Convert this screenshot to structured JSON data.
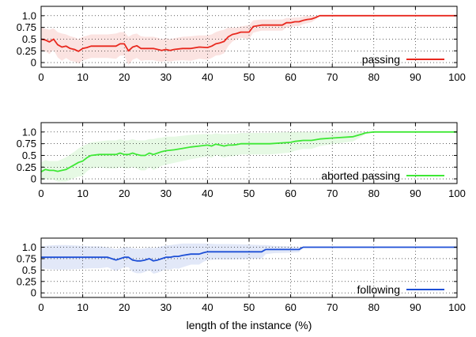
{
  "chart_data": [
    {
      "type": "line",
      "xlim": [
        0,
        100
      ],
      "ylim": [
        -0.1,
        1.2
      ],
      "x_ticks": [
        0,
        10,
        20,
        30,
        40,
        50,
        60,
        70,
        80,
        90,
        100
      ],
      "y_ticks": [
        0,
        0.25,
        0.5,
        0.75,
        1.0
      ],
      "x_tick_labels": [
        "0",
        "10",
        "20",
        "30",
        "40",
        "50",
        "60",
        "70",
        "80",
        "90",
        "100"
      ],
      "y_tick_labels": [
        "0",
        "0.25",
        "0.5",
        "0.75",
        "1.0"
      ],
      "grid": true,
      "legend_position": "bottom-right",
      "series": [
        {
          "name": "passing",
          "color": "#e8281e",
          "band_color": "#fbe3e1",
          "x": [
            0,
            1,
            2,
            3,
            4,
            5,
            6,
            7,
            8,
            9,
            10,
            11,
            12,
            14,
            16,
            18,
            19,
            20,
            21,
            22,
            23,
            24,
            25,
            26,
            27,
            28,
            29,
            30,
            31,
            32,
            34,
            36,
            38,
            40,
            41,
            42,
            43,
            44,
            45,
            46,
            47,
            48,
            50,
            51,
            53,
            55,
            58,
            59,
            60,
            61,
            62,
            63,
            64,
            65,
            66,
            67,
            70,
            80,
            90,
            100
          ],
          "y": [
            0.5,
            0.48,
            0.44,
            0.5,
            0.38,
            0.33,
            0.35,
            0.3,
            0.28,
            0.24,
            0.3,
            0.32,
            0.35,
            0.35,
            0.35,
            0.35,
            0.4,
            0.4,
            0.25,
            0.33,
            0.36,
            0.3,
            0.3,
            0.3,
            0.3,
            0.28,
            0.26,
            0.28,
            0.26,
            0.28,
            0.3,
            0.3,
            0.33,
            0.32,
            0.35,
            0.4,
            0.42,
            0.45,
            0.55,
            0.6,
            0.62,
            0.65,
            0.65,
            0.77,
            0.8,
            0.8,
            0.8,
            0.85,
            0.85,
            0.87,
            0.87,
            0.9,
            0.92,
            0.93,
            0.96,
            1.0,
            1.0,
            1.0,
            1.0,
            1.0
          ],
          "band_upper": [
            0.75,
            0.72,
            0.7,
            0.73,
            0.65,
            0.62,
            0.6,
            0.56,
            0.54,
            0.5,
            0.55,
            0.57,
            0.6,
            0.6,
            0.6,
            0.62,
            0.65,
            0.65,
            0.55,
            0.6,
            0.62,
            0.56,
            0.55,
            0.55,
            0.55,
            0.53,
            0.5,
            0.52,
            0.5,
            0.52,
            0.55,
            0.56,
            0.58,
            0.58,
            0.6,
            0.65,
            0.68,
            0.7,
            0.75,
            0.75,
            0.75,
            0.77,
            0.8,
            0.9,
            0.92,
            0.92,
            0.92,
            0.95,
            0.95,
            0.96,
            0.96,
            0.98,
            1.0,
            1.0,
            1.0,
            1.0,
            1.0,
            1.0,
            1.0,
            1.0
          ],
          "band_lower": [
            0.25,
            0.24,
            0.18,
            0.27,
            0.11,
            0.04,
            0.1,
            0.04,
            0.02,
            -0.02,
            0.05,
            0.07,
            0.1,
            0.1,
            0.1,
            0.08,
            0.15,
            0.15,
            -0.05,
            0.06,
            0.1,
            0.04,
            0.05,
            0.05,
            0.05,
            0.03,
            0.02,
            0.04,
            0.02,
            0.04,
            0.05,
            0.04,
            0.08,
            0.06,
            0.1,
            0.15,
            0.16,
            0.2,
            0.35,
            0.45,
            0.49,
            0.53,
            0.5,
            0.64,
            0.68,
            0.68,
            0.68,
            0.75,
            0.75,
            0.78,
            0.78,
            0.82,
            0.84,
            0.86,
            0.92,
            1.0,
            1.0,
            1.0,
            1.0,
            1.0
          ]
        }
      ]
    },
    {
      "type": "line",
      "xlim": [
        0,
        100
      ],
      "ylim": [
        -0.1,
        1.2
      ],
      "x_ticks": [
        0,
        10,
        20,
        30,
        40,
        50,
        60,
        70,
        80,
        90,
        100
      ],
      "y_ticks": [
        0,
        0.25,
        0.5,
        0.75,
        1.0
      ],
      "x_tick_labels": [
        "0",
        "10",
        "20",
        "30",
        "40",
        "50",
        "60",
        "70",
        "80",
        "90",
        "100"
      ],
      "y_tick_labels": [
        "0",
        "0.25",
        "0.5",
        "0.75",
        "1.0"
      ],
      "grid": true,
      "legend_position": "bottom-right",
      "series": [
        {
          "name": "aborted passing",
          "color": "#3ee835",
          "band_color": "#e6f9e4",
          "x": [
            0,
            1,
            2,
            3,
            4,
            5,
            6,
            7,
            8,
            9,
            10,
            11,
            12,
            14,
            16,
            18,
            19,
            20,
            21,
            22,
            23,
            24,
            25,
            26,
            27,
            28,
            29,
            30,
            32,
            34,
            36,
            38,
            40,
            41,
            42,
            43,
            44,
            45,
            46,
            47,
            48,
            50,
            55,
            60,
            61,
            63,
            65,
            67,
            70,
            75,
            77,
            78,
            80,
            90,
            100
          ],
          "y": [
            0.15,
            0.2,
            0.18,
            0.18,
            0.16,
            0.18,
            0.2,
            0.25,
            0.3,
            0.35,
            0.38,
            0.45,
            0.5,
            0.52,
            0.52,
            0.52,
            0.55,
            0.52,
            0.52,
            0.55,
            0.52,
            0.5,
            0.5,
            0.55,
            0.52,
            0.55,
            0.58,
            0.6,
            0.62,
            0.65,
            0.68,
            0.7,
            0.72,
            0.7,
            0.74,
            0.72,
            0.7,
            0.72,
            0.72,
            0.73,
            0.75,
            0.75,
            0.75,
            0.78,
            0.8,
            0.82,
            0.82,
            0.85,
            0.87,
            0.9,
            0.95,
            0.98,
            1.0,
            1.0,
            1.0
          ],
          "band_upper": [
            0.35,
            0.4,
            0.38,
            0.38,
            0.38,
            0.42,
            0.46,
            0.52,
            0.58,
            0.65,
            0.7,
            0.74,
            0.78,
            0.8,
            0.82,
            0.82,
            0.85,
            0.82,
            0.82,
            0.85,
            0.82,
            0.82,
            0.82,
            0.85,
            0.85,
            0.87,
            0.88,
            0.9,
            0.9,
            0.92,
            0.94,
            0.95,
            0.96,
            0.95,
            0.97,
            0.96,
            0.95,
            0.96,
            0.96,
            0.96,
            0.98,
            0.98,
            0.98,
            1.0,
            1.0,
            1.0,
            1.0,
            1.0,
            1.0,
            1.0,
            1.0,
            1.0,
            1.0,
            1.0,
            1.0
          ],
          "band_lower": [
            -0.05,
            0.0,
            -0.02,
            -0.02,
            -0.06,
            -0.06,
            -0.06,
            -0.02,
            0.02,
            0.05,
            0.06,
            0.16,
            0.22,
            0.24,
            0.22,
            0.22,
            0.25,
            0.22,
            0.22,
            0.25,
            0.22,
            0.18,
            0.18,
            0.25,
            0.19,
            0.23,
            0.28,
            0.3,
            0.34,
            0.38,
            0.42,
            0.45,
            0.48,
            0.45,
            0.51,
            0.48,
            0.45,
            0.48,
            0.48,
            0.5,
            0.52,
            0.52,
            0.52,
            0.56,
            0.6,
            0.64,
            0.64,
            0.7,
            0.74,
            0.8,
            0.9,
            0.96,
            1.0,
            1.0,
            1.0
          ]
        }
      ]
    },
    {
      "type": "line",
      "xlim": [
        0,
        100
      ],
      "ylim": [
        -0.1,
        1.2
      ],
      "x_ticks": [
        0,
        10,
        20,
        30,
        40,
        50,
        60,
        70,
        80,
        90,
        100
      ],
      "y_ticks": [
        0,
        0.25,
        0.5,
        0.75,
        1.0
      ],
      "x_tick_labels": [
        "0",
        "10",
        "20",
        "30",
        "40",
        "50",
        "60",
        "70",
        "80",
        "90",
        "100"
      ],
      "y_tick_labels": [
        "0",
        "0.25",
        "0.5",
        "0.75",
        "1.0"
      ],
      "grid": true,
      "legend_position": "bottom-right",
      "xlabel": "length of the instance (%)",
      "series": [
        {
          "name": "following",
          "color": "#1d4fd6",
          "band_color": "#e2e8f8",
          "x": [
            0,
            2,
            4,
            6,
            8,
            10,
            12,
            14,
            16,
            17,
            18,
            19,
            20,
            21,
            22,
            23,
            24,
            25,
            26,
            27,
            28,
            29,
            30,
            31,
            32,
            33,
            34,
            36,
            38,
            39,
            40,
            42,
            45,
            50,
            53,
            54,
            56,
            60,
            62,
            63,
            70,
            80,
            90,
            100
          ],
          "y": [
            0.78,
            0.78,
            0.78,
            0.78,
            0.78,
            0.78,
            0.78,
            0.78,
            0.78,
            0.75,
            0.72,
            0.75,
            0.78,
            0.78,
            0.72,
            0.7,
            0.7,
            0.72,
            0.75,
            0.7,
            0.72,
            0.75,
            0.78,
            0.78,
            0.8,
            0.8,
            0.82,
            0.85,
            0.85,
            0.88,
            0.9,
            0.9,
            0.9,
            0.9,
            0.9,
            0.95,
            0.95,
            0.95,
            0.95,
            1.0,
            1.0,
            1.0,
            1.0,
            1.0
          ],
          "band_upper": [
            1.02,
            1.04,
            1.05,
            1.05,
            1.04,
            1.03,
            1.02,
            1.02,
            1.0,
            0.98,
            0.96,
            0.98,
            1.0,
            1.0,
            0.98,
            0.97,
            0.97,
            0.98,
            1.0,
            0.98,
            1.0,
            1.02,
            1.04,
            1.05,
            1.06,
            1.07,
            1.08,
            1.08,
            1.08,
            1.08,
            1.08,
            1.07,
            1.07,
            1.06,
            1.05,
            1.05,
            1.03,
            1.02,
            1.01,
            1.0,
            1.0,
            1.0,
            1.0,
            1.0
          ],
          "band_lower": [
            0.54,
            0.52,
            0.51,
            0.51,
            0.52,
            0.53,
            0.54,
            0.54,
            0.56,
            0.52,
            0.48,
            0.52,
            0.56,
            0.56,
            0.46,
            0.43,
            0.43,
            0.46,
            0.5,
            0.42,
            0.44,
            0.48,
            0.52,
            0.51,
            0.54,
            0.53,
            0.56,
            0.62,
            0.62,
            0.68,
            0.72,
            0.73,
            0.73,
            0.74,
            0.75,
            0.85,
            0.87,
            0.88,
            0.89,
            1.0,
            1.0,
            1.0,
            1.0,
            1.0
          ]
        }
      ]
    }
  ]
}
